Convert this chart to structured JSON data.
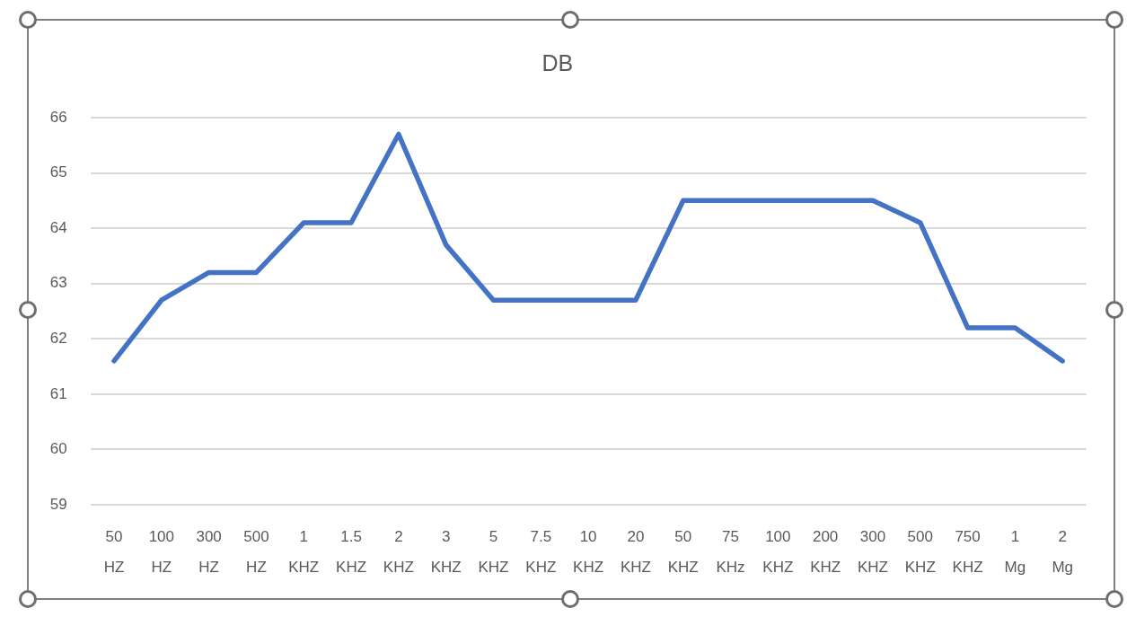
{
  "chart_data": {
    "type": "line",
    "title": "DB",
    "categories": [
      "50 HZ",
      "100 HZ",
      "300 HZ",
      "500 HZ",
      "1 KHZ",
      "1.5 KHZ",
      "2 KHZ",
      "3 KHZ",
      "5 KHZ",
      "7.5 KHZ",
      "10 KHZ",
      "20 KHZ",
      "50 KHZ",
      "75 KHz",
      "100 KHZ",
      "200 KHZ",
      "300 KHZ",
      "500 KHZ",
      "750 KHZ",
      "1 Mg",
      "2 Mg"
    ],
    "values": [
      61.6,
      62.7,
      63.2,
      63.2,
      64.1,
      64.1,
      65.7,
      63.7,
      62.7,
      62.7,
      62.7,
      62.7,
      64.5,
      64.5,
      64.5,
      64.5,
      64.5,
      64.1,
      62.2,
      62.2,
      61.6
    ],
    "color": "#4472c4",
    "ylim": [
      59,
      66
    ],
    "yticks": [
      59,
      60,
      61,
      62,
      63,
      64,
      65,
      66
    ],
    "grid": "y",
    "legend": false,
    "marker": "none"
  }
}
